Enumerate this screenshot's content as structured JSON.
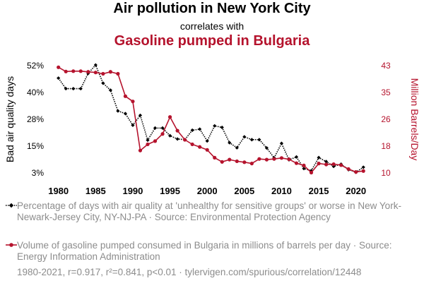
{
  "header": {
    "title": "Air pollution in New York City",
    "subtitle": "correlates with",
    "title2": "Gasoline pumped in Bulgaria"
  },
  "colors": {
    "series1": "#000000",
    "series2": "#b5132d",
    "muted": "#8c8c8c"
  },
  "chart_data": {
    "type": "line",
    "x": [
      1980,
      1981,
      1982,
      1983,
      1984,
      1985,
      1986,
      1987,
      1988,
      1989,
      1990,
      1991,
      1992,
      1993,
      1994,
      1995,
      1996,
      1997,
      1998,
      1999,
      2000,
      2001,
      2002,
      2003,
      2004,
      2005,
      2006,
      2007,
      2008,
      2009,
      2010,
      2011,
      2012,
      2013,
      2014,
      2015,
      2016,
      2017,
      2018,
      2019,
      2020,
      2021
    ],
    "xlabel": "",
    "x_ticks": [
      "1980",
      "1985",
      "1990",
      "1995",
      "2000",
      "2005",
      "2010",
      "2015",
      "2020"
    ],
    "ylabel_left": "Bad air quality days",
    "ylabel_right": "Million Barrels/Day",
    "ylim_left": [
      3,
      52
    ],
    "ylim_right": [
      10,
      43
    ],
    "y_ticks_left": [
      "3%",
      "15%",
      "28%",
      "40%",
      "52%"
    ],
    "y_ticks_right": [
      "10",
      "18",
      "26",
      "35",
      "43"
    ],
    "series": [
      {
        "name": "Percentage of days with air quality at 'unhealthy for sensitive groups' or worse in New York-Newark-Jersey City, NY-NJ-PA",
        "axis": "left",
        "color": "#000000",
        "style": "dotted",
        "marker": "diamond",
        "values": [
          46.3,
          41.5,
          41.5,
          41.5,
          48.5,
          52.3,
          44.0,
          40.8,
          31.3,
          30.1,
          24.8,
          29.3,
          18.0,
          23.5,
          23.5,
          20.0,
          18.5,
          18.2,
          22.5,
          23.0,
          17.6,
          24.5,
          23.8,
          16.8,
          14.5,
          19.5,
          18.2,
          18.2,
          14.4,
          9.9,
          16.5,
          9.0,
          10.3,
          5.0,
          4.0,
          10.0,
          8.2,
          6.0,
          7.0,
          4.5,
          3.3,
          5.6
        ]
      },
      {
        "name": "Volume of gasoline pumped consumed in Bulgaria in millions of barrels per day",
        "axis": "right",
        "color": "#b5132d",
        "style": "solid",
        "marker": "circle",
        "values": [
          42.5,
          41.2,
          41.3,
          41.3,
          41.1,
          40.9,
          40.5,
          41.1,
          40.5,
          33.6,
          32.0,
          16.9,
          18.8,
          19.8,
          22.0,
          27.2,
          23.0,
          20.2,
          18.8,
          18.0,
          17.1,
          14.7,
          13.4,
          14.1,
          13.6,
          13.3,
          12.9,
          14.3,
          14.1,
          14.3,
          14.6,
          14.2,
          13.0,
          12.3,
          10.1,
          12.9,
          12.6,
          12.7,
          12.4,
          11.2,
          10.3,
          10.6
        ]
      }
    ]
  },
  "legend": {
    "item1": "Percentage of days with air quality at 'unhealthy for sensitive groups' or worse in New York-Newark-Jersey City, NY-NJ-PA · Source: Environmental Protection Agency",
    "item2": "Volume of gasoline pumped consumed in Bulgaria in millions of barrels per day · Source: Energy Information Administration"
  },
  "footer": "1980-2021, r=0.917, r²=0.841, p<0.01 · tylervigen.com/spurious/correlation/12448"
}
